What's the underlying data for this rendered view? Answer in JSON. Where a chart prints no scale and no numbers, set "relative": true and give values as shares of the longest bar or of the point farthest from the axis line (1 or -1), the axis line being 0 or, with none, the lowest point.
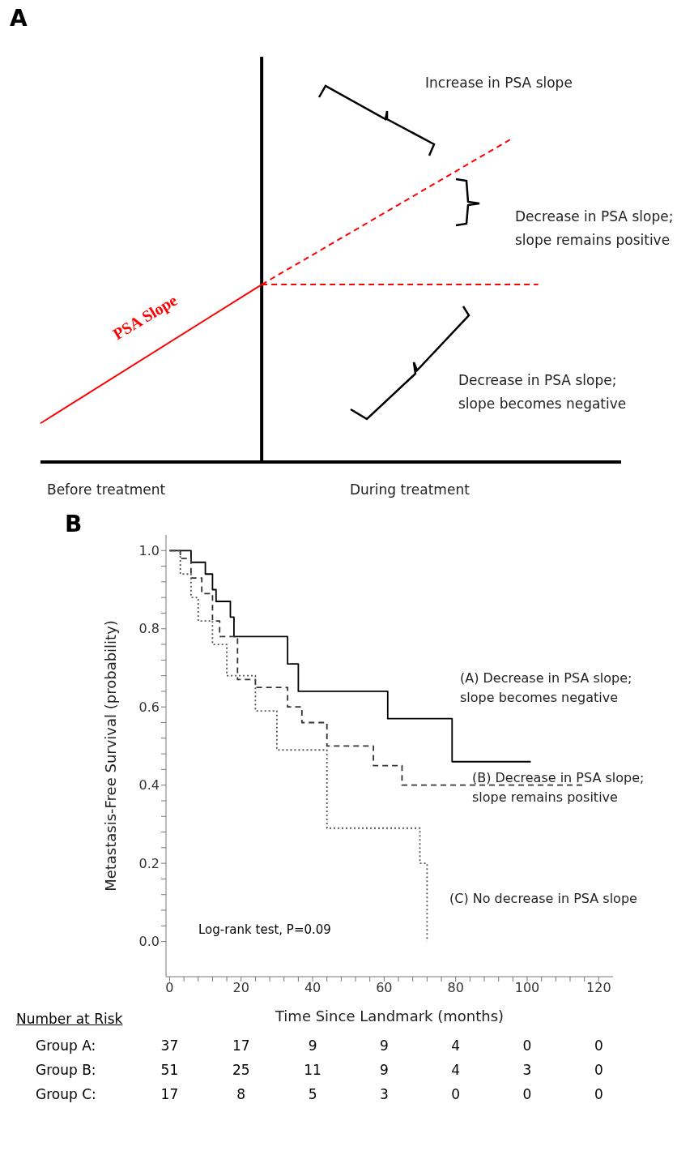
{
  "chart_data": [
    {
      "type": "line",
      "title": "A",
      "relative": true,
      "marker": "none",
      "categories": [
        null,
        null,
        null,
        null,
        null,
        null,
        null,
        null,
        null,
        null,
        null,
        null,
        null,
        null,
        null,
        null,
        null,
        null,
        null,
        null,
        null,
        null
      ],
      "series": [
        {
          "name": "PSA Slope",
          "color": "#ff0000",
          "line_style": "solid",
          "values": [
            0.12,
            null,
            null,
            null,
            null,
            null,
            null,
            null,
            0.55,
            null,
            null,
            null,
            null,
            null,
            null,
            null,
            null,
            null,
            null,
            null,
            null,
            null
          ]
        },
        {
          "color": "#ff0000",
          "line_style": "dashed",
          "values": [
            null,
            null,
            null,
            null,
            null,
            null,
            null,
            null,
            0.55,
            null,
            null,
            null,
            null,
            null,
            null,
            null,
            null,
            1,
            null,
            null,
            null,
            null
          ]
        },
        {
          "color": "#ff0000",
          "line_style": "dashed",
          "values": [
            null,
            null,
            null,
            null,
            null,
            null,
            null,
            null,
            0.55,
            null,
            null,
            null,
            null,
            null,
            null,
            null,
            null,
            null,
            0.55,
            null,
            null,
            null
          ]
        }
      ],
      "annotations": [
        "Increase in PSA slope",
        "Decrease in PSA slope;\nslope remains positive",
        "Decrease in PSA slope;\nslope becomes negative",
        "Before treatment",
        "During treatment"
      ]
    },
    {
      "type": "step",
      "title": "B",
      "xlabel": "Time Since Landmark (months)",
      "ylabel": "Metastasis-Free Survival (probability)",
      "marker": "none",
      "xlim": [
        -1,
        124
      ],
      "ylim": [
        -0.09,
        1.04
      ],
      "xticks": [
        0,
        {
          "value": 4,
          "label": null
        },
        {
          "value": 8,
          "label": null
        },
        {
          "value": 12,
          "label": null
        },
        {
          "value": 16,
          "label": null
        },
        20,
        {
          "value": 24,
          "label": null
        },
        {
          "value": 28,
          "label": null
        },
        {
          "value": 32,
          "label": null
        },
        {
          "value": 36,
          "label": null
        },
        40,
        {
          "value": 44,
          "label": null
        },
        {
          "value": 48,
          "label": null
        },
        {
          "value": 52,
          "label": null
        },
        {
          "value": 56,
          "label": null
        },
        60,
        {
          "value": 64,
          "label": null
        },
        {
          "value": 68,
          "label": null
        },
        {
          "value": 72,
          "label": null
        },
        {
          "value": 76,
          "label": null
        },
        80,
        {
          "value": 84,
          "label": null
        },
        {
          "value": 88,
          "label": null
        },
        {
          "value": 92,
          "label": null
        },
        {
          "value": 96,
          "label": null
        },
        100,
        {
          "value": 104,
          "label": null
        },
        {
          "value": 108,
          "label": null
        },
        {
          "value": 112,
          "label": null
        },
        {
          "value": 116,
          "label": null
        },
        120
      ],
      "yticks": [
        {
          "value": 0,
          "label": "0.0"
        },
        {
          "value": 0.04,
          "label": null
        },
        {
          "value": 0.08,
          "label": null
        },
        {
          "value": 0.12,
          "label": null
        },
        {
          "value": 0.16,
          "label": null
        },
        {
          "value": 0.2,
          "label": "0.2"
        },
        {
          "value": 0.24,
          "label": null
        },
        {
          "value": 0.28,
          "label": null
        },
        {
          "value": 0.32,
          "label": null
        },
        {
          "value": 0.36,
          "label": null
        },
        {
          "value": 0.4,
          "label": "0.4"
        },
        {
          "value": 0.44,
          "label": null
        },
        {
          "value": 0.48,
          "label": null
        },
        {
          "value": 0.52,
          "label": null
        },
        {
          "value": 0.56,
          "label": null
        },
        {
          "value": 0.6,
          "label": "0.6"
        },
        {
          "value": 0.64,
          "label": null
        },
        {
          "value": 0.68,
          "label": null
        },
        {
          "value": 0.72,
          "label": null
        },
        {
          "value": 0.76,
          "label": null
        },
        {
          "value": 0.8,
          "label": "0.8"
        },
        {
          "value": 0.84,
          "label": null
        },
        {
          "value": 0.88,
          "label": null
        },
        {
          "value": 0.92,
          "label": null
        },
        {
          "value": 0.96,
          "label": null
        },
        {
          "value": 1,
          "label": "1.0"
        }
      ],
      "series": [
        {
          "name": "(A) Decrease in PSA slope;\nslope becomes negative",
          "color": "#000000",
          "line_style": "solid",
          "x": [
            0,
            6,
            10,
            12,
            13,
            17,
            18,
            33,
            36,
            61,
            79,
            101
          ],
          "values": [
            1,
            0.97,
            0.94,
            0.9,
            0.87,
            0.83,
            0.78,
            0.71,
            0.64,
            0.57,
            0.46,
            0.46
          ]
        },
        {
          "name": "(B) Decrease in PSA slope;\nslope remains positive",
          "color": "#333333",
          "line_style": "dashed",
          "x": [
            0,
            3,
            6,
            9,
            12,
            14,
            19,
            24,
            33,
            37,
            44,
            57,
            65,
            116
          ],
          "values": [
            1,
            0.98,
            0.93,
            0.89,
            0.82,
            0.78,
            0.67,
            0.65,
            0.6,
            0.56,
            0.5,
            0.45,
            0.4,
            0.4
          ]
        },
        {
          "name": "(C) No decrease in PSA slope",
          "color": "#555555",
          "line_style": "dotted",
          "x": [
            0,
            3,
            6,
            8,
            12,
            16,
            24,
            30,
            44,
            70,
            72
          ],
          "values": [
            1,
            0.94,
            0.88,
            0.82,
            0.76,
            0.68,
            0.59,
            0.49,
            0.29,
            0.2,
            0
          ]
        }
      ],
      "annotations": [
        "Log-rank test, P=0.09",
        "Number at Risk",
        "Group A:",
        "37",
        "17",
        "9",
        "9",
        "4",
        "0",
        "0",
        "Group B:",
        "51",
        "25",
        "11",
        "9",
        "4",
        "3",
        "0",
        "Group C:",
        "17",
        "8",
        "5",
        "3",
        "0",
        "0",
        "0"
      ]
    }
  ]
}
